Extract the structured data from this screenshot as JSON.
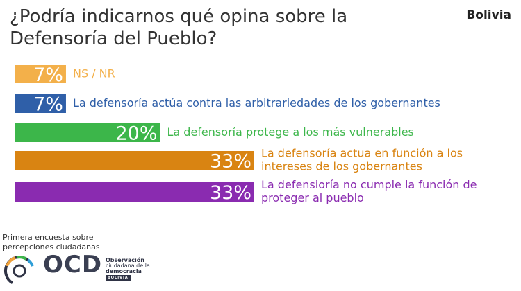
{
  "header": {
    "title": "¿Podría indicarnos qué opina sobre la Defensoría del Pueblo?",
    "country": "Bolivia"
  },
  "chart_data": {
    "type": "bar",
    "orientation": "horizontal",
    "title": "¿Podría indicarnos qué opina sobre la Defensoría del Pueblo?",
    "unit": "%",
    "categories": [
      "NS / NR",
      "La defensoría actúa contra las arbitrariedades de los gobernantes",
      "La defensoría protege a los más vulnerables",
      "La defensoría actua en función a los intereses de los gobernantes",
      "La defensioría no cumple la función de proteger al pueblo"
    ],
    "label_lines": [
      [
        "NS / NR"
      ],
      [
        "La defensoría actúa contra las arbitrariedades de los gobernantes"
      ],
      [
        "La defensoría protege a los más vulnerables"
      ],
      [
        "La defensoría actua en función a los",
        "intereses de los gobernantes"
      ],
      [
        "La defensioría no cumple la función de",
        "proteger al pueblo"
      ]
    ],
    "values": [
      7,
      7,
      20,
      33,
      33
    ],
    "value_labels": [
      "7%",
      "7%",
      "20%",
      "33%",
      "33%"
    ],
    "colors": [
      "#f3b04a",
      "#2f5fa8",
      "#3cb64a",
      "#d98412",
      "#8a2bb0"
    ],
    "xlim": [
      0,
      33
    ],
    "legend": "none",
    "grid": false
  },
  "footer": {
    "survey_line1": "Primera encuesta sobre",
    "survey_line2": "percepciones ciudadanas",
    "logo_letters": "OCD",
    "logo_sub1": "Observación",
    "logo_sub2": "ciudadana de la",
    "logo_sub3": "democracia",
    "logo_country": "BOLIVIA"
  }
}
